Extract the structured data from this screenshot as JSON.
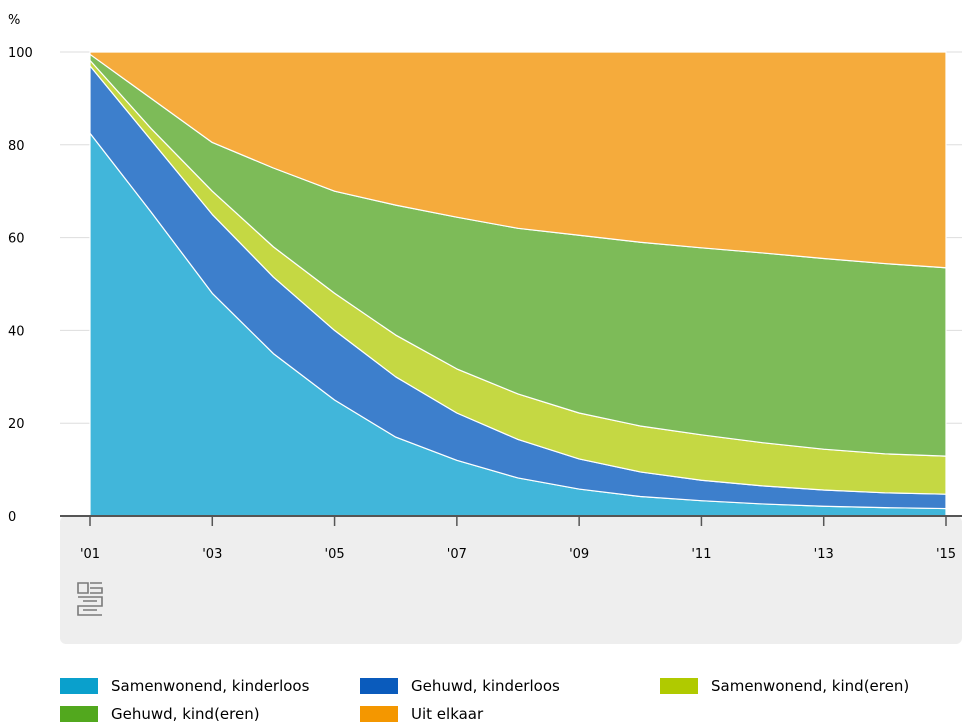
{
  "chart_data": {
    "type": "area",
    "stacked": true,
    "ylabel": "%",
    "ylim": [
      0,
      100
    ],
    "yticks": [
      0,
      20,
      40,
      60,
      80,
      100
    ],
    "x": [
      2001,
      2002,
      2003,
      2004,
      2005,
      2006,
      2007,
      2008,
      2009,
      2010,
      2011,
      2012,
      2013,
      2014,
      2015
    ],
    "xtick_labels": [
      "'01",
      "'03",
      "'05",
      "'07",
      "'09",
      "'11",
      "'13",
      "'15"
    ],
    "xtick_values": [
      2001,
      2003,
      2005,
      2007,
      2009,
      2011,
      2013,
      2015
    ],
    "grid": true,
    "legend_position": "bottom",
    "series": [
      {
        "name": "Samenwonend, kinderloos",
        "color": "#41b6da",
        "values": [
          82.5,
          65.5,
          48,
          35,
          25,
          17,
          12,
          8.2,
          5.8,
          4.2,
          3.3,
          2.6,
          2.1,
          1.8,
          1.6
        ]
      },
      {
        "name": "Gehuwd, kinderloos",
        "color": "#3d7fcc",
        "values": [
          14.5,
          15.5,
          17,
          16.5,
          15,
          13,
          10.2,
          8.3,
          6.5,
          5.3,
          4.4,
          3.9,
          3.5,
          3.2,
          3.1
        ]
      },
      {
        "name": "Samenwonend, kind(eren)",
        "color": "#c5d843",
        "values": [
          1.2,
          2.5,
          5,
          6.5,
          8,
          9,
          9.5,
          9.8,
          9.9,
          9.9,
          9.8,
          9.3,
          8.8,
          8.4,
          8.2
        ]
      },
      {
        "name": "Gehuwd, kind(eren)",
        "color": "#7dbb58",
        "values": [
          1.3,
          6.5,
          10.5,
          17,
          22,
          28,
          32.7,
          35.7,
          38.3,
          39.6,
          40.3,
          40.9,
          41.1,
          41.0,
          40.6
        ]
      },
      {
        "name": "Uit elkaar",
        "color": "#f5ab3c",
        "values": [
          0.5,
          10,
          19.5,
          25,
          30,
          33,
          35.6,
          38,
          39.5,
          41,
          42.2,
          43.3,
          44.5,
          45.6,
          46.5
        ]
      }
    ]
  },
  "legend": {
    "items": [
      {
        "label": "Samenwonend, kinderloos",
        "color": "#0aa0cc"
      },
      {
        "label": "Gehuwd, kinderloos",
        "color": "#0a5bbc"
      },
      {
        "label": "Samenwonend, kind(eren)",
        "color": "#b0ca00"
      },
      {
        "label": "Gehuwd, kind(eren)",
        "color": "#52a81e"
      },
      {
        "label": "Uit elkaar",
        "color": "#f49700"
      }
    ]
  },
  "logo": {
    "text": "cbs",
    "color": "#7a7a7a"
  },
  "colors": {
    "axis_panel": "#eeeeee",
    "grid": "#dddddd",
    "axis_line": "#555555"
  }
}
